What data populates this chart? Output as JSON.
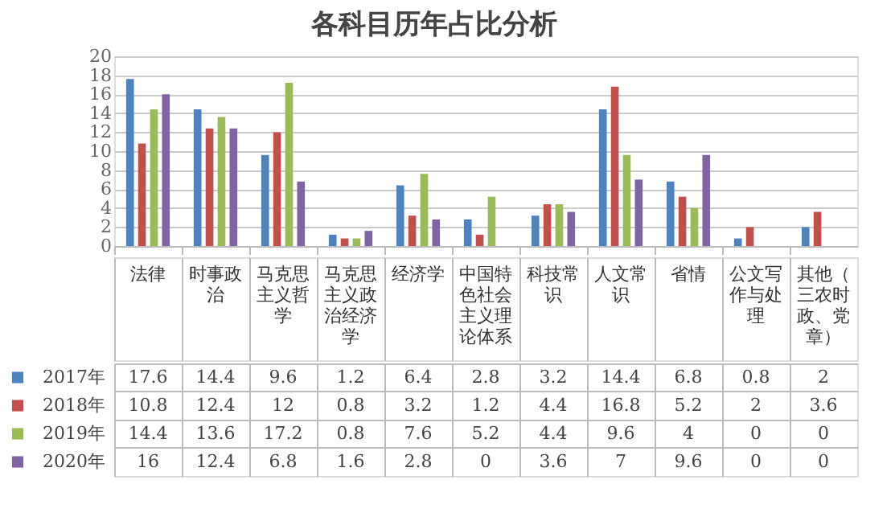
{
  "chart_data": {
    "type": "bar",
    "title": "各科目历年占比分析",
    "categories": [
      "法律",
      "时事政治",
      "马克思主义哲学",
      "马克思主义政治经济学",
      "经济学",
      "中国特色社会主义理论体系",
      "科技常识",
      "人文常识",
      "省情",
      "公文写作与处理",
      "其他（三农时政、党章）"
    ],
    "series": [
      {
        "name": "2017年",
        "color": "#4f81bd",
        "values": [
          17.6,
          14.4,
          9.6,
          1.2,
          6.4,
          2.8,
          3.2,
          14.4,
          6.8,
          0.8,
          2
        ]
      },
      {
        "name": "2018年",
        "color": "#c0504d",
        "values": [
          10.8,
          12.4,
          12,
          0.8,
          3.2,
          1.2,
          4.4,
          16.8,
          5.2,
          2,
          3.6
        ]
      },
      {
        "name": "2019年",
        "color": "#9bbb59",
        "values": [
          14.4,
          13.6,
          17.2,
          0.8,
          7.6,
          5.2,
          4.4,
          9.6,
          4,
          0,
          0
        ]
      },
      {
        "name": "2020年",
        "color": "#8064a2",
        "values": [
          16,
          12.4,
          6.8,
          1.6,
          2.8,
          0,
          3.6,
          7,
          9.6,
          0,
          0
        ]
      }
    ],
    "ylim": [
      0,
      20
    ],
    "yticks": [
      0,
      2,
      4,
      6,
      8,
      10,
      12,
      14,
      16,
      18,
      20
    ],
    "grid": "y",
    "legend": "bottom left",
    "data_labels": true
  }
}
